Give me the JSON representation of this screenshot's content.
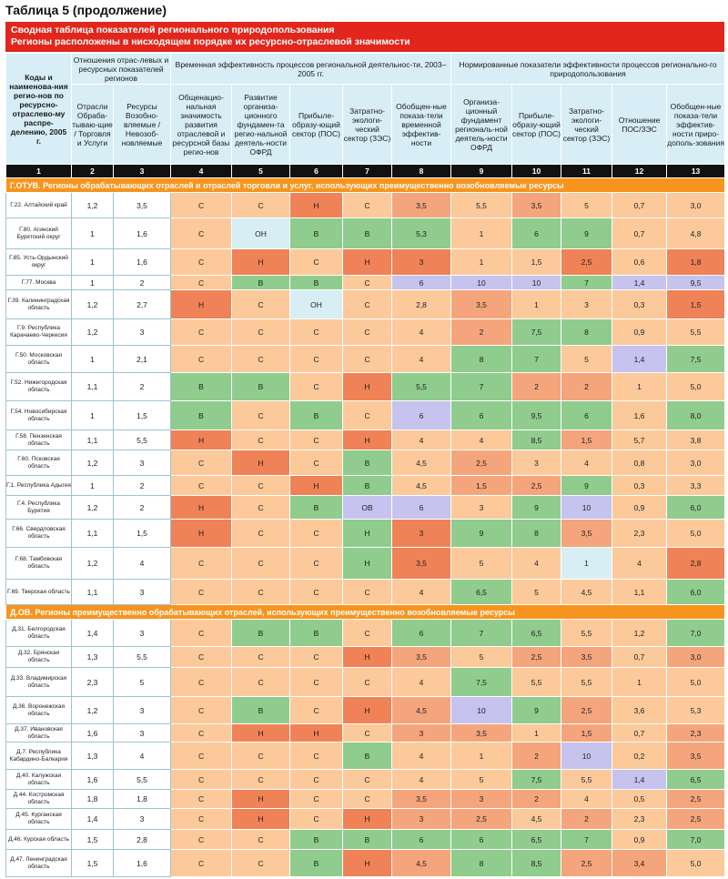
{
  "caption": "Таблица 5 (продолжение)",
  "banner": {
    "line1": "Сводная таблица показателей регионального природопользования",
    "line2": "Регионы расположены в нисходящем порядке их ресурсно-отраслевой значимости"
  },
  "header": {
    "col1": "Коды и наименова-ния регио-нов по ресурсно-отраслево-му распре-делению, 2005 г.",
    "group_ratios": "Отношения отрас-левых и ресурсных показателей регионов",
    "group_time": "Временная эффективность процессов региональной деятельнос-ти, 2003–2005 гг.",
    "group_norm": "Нормированные показатели эффективности процессов регионально-го природопользования",
    "col2": "Отрасли Обраба-тываю-щие / Торговля и Услуги",
    "col3": "Ресурсы Возобно-вляемые / Невозоб-новляемые",
    "col4": "Общенацио-нальная значимость развития отраслевой и ресурсной базы регио-нов",
    "col5": "Развитие организа-ционного фундамен-та регио-нальной деятель-ности ОФРД",
    "col6": "Прибыле-образу-ющий сектор (ПОС)",
    "col7": "Затратно-экологи-ческий сектор (ЗЭС)",
    "col8": "Обобщен-ные показа-тели временной эффектив-ности",
    "col9": "Организа-ционный фундамент региональ-ной деятель-ности ОФРД",
    "col10": "Прибыле-образу-ющий сектор (ПОС)",
    "col11": "Затратно-экологи-ческий сектор (ЗЭС)",
    "col12": "Отношение ПОС/ЗЭС",
    "col13": "Обобщен-ные показа-тели эффектив-ности приро-дополь-зования"
  },
  "col_numbers": [
    "1",
    "2",
    "3",
    "4",
    "5",
    "6",
    "7",
    "8",
    "9",
    "10",
    "11",
    "12",
    "13"
  ],
  "sections": [
    {
      "title": "Г.ОТУВ. Регионы обрабатывающих отраслей и отраслей торговли и услуг, использующих преимущественно возобновляемые ресурсы",
      "rows": [
        [
          "Г.22. Алтайский край",
          "1,2",
          "3,5",
          "С",
          "С",
          "Н",
          "С",
          "3,5",
          "5,5",
          "3,5",
          "5",
          "0,7",
          "3,0"
        ],
        [
          "Г.80. Агинский Бурятский округ",
          "1",
          "1,6",
          "С",
          "ОН",
          "В",
          "В",
          "5,3",
          "1",
          "6",
          "9",
          "0,7",
          "4,8"
        ],
        [
          "Г.85. Усть-Ордынский округ",
          "1",
          "1,6",
          "С",
          "Н",
          "С",
          "Н",
          "3",
          "1",
          "1,5",
          "2,5",
          "0,6",
          "1,8"
        ],
        [
          "Г.77. Москва",
          "1",
          "2",
          "С",
          "В",
          "В",
          "С",
          "6",
          "10",
          "10",
          "7",
          "1,4",
          "9,5"
        ],
        [
          "Г.39. Калининградская область",
          "1,2",
          "2,7",
          "Н",
          "С",
          "ОН",
          "С",
          "2,8",
          "3,5",
          "1",
          "3",
          "0,3",
          "1,5"
        ],
        [
          "Г.9. Республика Карачаево-Черкесия",
          "1,2",
          "3",
          "С",
          "С",
          "С",
          "С",
          "4",
          "2",
          "7,5",
          "8",
          "0,9",
          "5,5"
        ],
        [
          "Г.50. Московская область",
          "1",
          "2,1",
          "С",
          "С",
          "С",
          "С",
          "4",
          "8",
          "7",
          "5",
          "1,4",
          "7,5"
        ],
        [
          "Г.52. Нижегородская область",
          "1,1",
          "2",
          "В",
          "В",
          "С",
          "Н",
          "5,5",
          "7",
          "2",
          "2",
          "1",
          "5,0"
        ],
        [
          "Г.54. Новосибирская область",
          "1",
          "1,5",
          "В",
          "С",
          "В",
          "С",
          "6",
          "6",
          "9,5",
          "6",
          "1,6",
          "8,0"
        ],
        [
          "Г.58. Пензенская область",
          "1,1",
          "5,5",
          "Н",
          "С",
          "С",
          "Н",
          "4",
          "4",
          "8,5",
          "1,5",
          "5,7",
          "3,8"
        ],
        [
          "Г.60. Псковская область",
          "1,2",
          "3",
          "С",
          "Н",
          "С",
          "В",
          "4,5",
          "2,5",
          "3",
          "4",
          "0,8",
          "3,0"
        ],
        [
          "Г.1. Республика Адыгея",
          "1",
          "2",
          "С",
          "С",
          "Н",
          "В",
          "4,5",
          "1,5",
          "2,5",
          "9",
          "0,3",
          "3,3"
        ],
        [
          "Г.4. Республика Бурятия",
          "1,2",
          "2",
          "Н",
          "С",
          "В",
          "ОВ",
          "6",
          "3",
          "9",
          "10",
          "0,9",
          "6,0"
        ],
        [
          "Г.66. Свердловская область",
          "1,1",
          "1,5",
          "Н",
          "С",
          "С",
          "Н",
          "3",
          "9",
          "8",
          "3,5",
          "2,3",
          "5,0"
        ],
        [
          "Г.68. Тамбовская область",
          "1,2",
          "4",
          "С",
          "С",
          "С",
          "Н",
          "3,5",
          "5",
          "4",
          "1",
          "4",
          "2,8"
        ],
        [
          "Г.69. Тверская область",
          "1,1",
          "3",
          "С",
          "С",
          "С",
          "С",
          "4",
          "6,5",
          "5",
          "4,5",
          "1,1",
          "6,0"
        ]
      ],
      "colors": [
        [
          "L",
          "L",
          "R",
          "L",
          "O",
          "L",
          "O",
          "L",
          "L",
          "L"
        ],
        [
          "L",
          "W",
          "G",
          "G",
          "G",
          "L",
          "G",
          "G",
          "L",
          "L"
        ],
        [
          "L",
          "R",
          "L",
          "R",
          "R",
          "L",
          "L",
          "R",
          "L",
          "R"
        ],
        [
          "L",
          "G",
          "G",
          "L",
          "B",
          "B",
          "B",
          "G",
          "B",
          "B"
        ],
        [
          "R",
          "L",
          "W",
          "L",
          "L",
          "O",
          "L",
          "L",
          "L",
          "R"
        ],
        [
          "L",
          "L",
          "L",
          "L",
          "L",
          "O",
          "G",
          "G",
          "L",
          "L"
        ],
        [
          "L",
          "L",
          "L",
          "L",
          "L",
          "G",
          "G",
          "L",
          "B",
          "G"
        ],
        [
          "G",
          "G",
          "L",
          "R",
          "G",
          "G",
          "O",
          "O",
          "L",
          "L"
        ],
        [
          "G",
          "L",
          "G",
          "L",
          "B",
          "G",
          "G",
          "G",
          "L",
          "G"
        ],
        [
          "R",
          "L",
          "L",
          "R",
          "L",
          "L",
          "G",
          "O",
          "L",
          "L"
        ],
        [
          "L",
          "R",
          "L",
          "G",
          "L",
          "O",
          "L",
          "L",
          "L",
          "L"
        ],
        [
          "L",
          "L",
          "R",
          "G",
          "L",
          "O",
          "O",
          "G",
          "L",
          "L"
        ],
        [
          "R",
          "L",
          "G",
          "B",
          "B",
          "L",
          "G",
          "B",
          "L",
          "G"
        ],
        [
          "R",
          "L",
          "L",
          "G",
          "R",
          "G",
          "G",
          "O",
          "L",
          "L"
        ],
        [
          "L",
          "L",
          "L",
          "G",
          "R",
          "L",
          "L",
          "W",
          "L",
          "R"
        ],
        [
          "L",
          "L",
          "L",
          "L",
          "L",
          "G",
          "L",
          "L",
          "L",
          "G"
        ]
      ]
    },
    {
      "title": "Д.ОВ. Регионы преимущественно обрабатывающих отраслей, использующих преимущественно возобновляемые ресурсы",
      "rows": [
        [
          "Д.31. Белгородская область",
          "1,4",
          "3",
          "С",
          "В",
          "В",
          "С",
          "6",
          "7",
          "6,5",
          "5,5",
          "1,2",
          "7,0"
        ],
        [
          "Д.32. Брянская область",
          "1,3",
          "5,5",
          "С",
          "С",
          "С",
          "Н",
          "3,5",
          "5",
          "2,5",
          "3,5",
          "0,7",
          "3,0"
        ],
        [
          "Д.33. Владимирская область",
          "2,3",
          "5",
          "С",
          "С",
          "С",
          "С",
          "4",
          "7,5",
          "5,5",
          "5,5",
          "1",
          "5,0"
        ],
        [
          "Д.36. Воронежская область",
          "1,2",
          "3",
          "С",
          "В",
          "С",
          "Н",
          "4,5",
          "10",
          "9",
          "2,5",
          "3,6",
          "5,3"
        ],
        [
          "Д.37. Ивановская область",
          "1,6",
          "3",
          "С",
          "Н",
          "Н",
          "С",
          "3",
          "3,5",
          "1",
          "1,5",
          "0,7",
          "2,3"
        ],
        [
          "Д.7. Республика Кабардино-Балкария",
          "1,3",
          "4",
          "С",
          "С",
          "С",
          "В",
          "4",
          "1",
          "2",
          "10",
          "0,2",
          "3,5"
        ],
        [
          "Д.40. Калужская область",
          "1,6",
          "5,5",
          "С",
          "С",
          "С",
          "С",
          "4",
          "5",
          "7,5",
          "5,5",
          "1,4",
          "6,5"
        ],
        [
          "Д.44. Костромская область",
          "1,8",
          "1,8",
          "С",
          "Н",
          "С",
          "С",
          "3,5",
          "3",
          "2",
          "4",
          "0,5",
          "2,5"
        ],
        [
          "Д.45. Курганская область",
          "1,4",
          "3",
          "С",
          "Н",
          "С",
          "Н",
          "3",
          "2,5",
          "4,5",
          "2",
          "2,3",
          "2,5"
        ],
        [
          "Д.46. Курская область",
          "1,5",
          "2,8",
          "С",
          "С",
          "В",
          "В",
          "6",
          "6",
          "6,5",
          "7",
          "0,9",
          "7,0"
        ],
        [
          "Д.47. Ленинградская область",
          "1,5",
          "1,6",
          "С",
          "С",
          "В",
          "Н",
          "4,5",
          "8",
          "8,5",
          "2,5",
          "3,4",
          "5,0"
        ]
      ],
      "colors": [
        [
          "L",
          "G",
          "G",
          "L",
          "G",
          "G",
          "G",
          "L",
          "L",
          "G"
        ],
        [
          "L",
          "L",
          "L",
          "R",
          "O",
          "L",
          "O",
          "O",
          "L",
          "O"
        ],
        [
          "L",
          "L",
          "L",
          "L",
          "L",
          "G",
          "L",
          "L",
          "L",
          "L"
        ],
        [
          "L",
          "G",
          "L",
          "R",
          "O",
          "B",
          "G",
          "O",
          "L",
          "L"
        ],
        [
          "L",
          "R",
          "R",
          "L",
          "O",
          "O",
          "L",
          "O",
          "L",
          "O"
        ],
        [
          "L",
          "L",
          "L",
          "G",
          "L",
          "L",
          "O",
          "B",
          "L",
          "O"
        ],
        [
          "L",
          "L",
          "L",
          "L",
          "L",
          "L",
          "G",
          "L",
          "B",
          "G"
        ],
        [
          "L",
          "R",
          "L",
          "L",
          "O",
          "O",
          "O",
          "L",
          "L",
          "O"
        ],
        [
          "L",
          "R",
          "L",
          "R",
          "O",
          "O",
          "L",
          "O",
          "L",
          "O"
        ],
        [
          "L",
          "L",
          "G",
          "G",
          "G",
          "G",
          "G",
          "G",
          "L",
          "G"
        ],
        [
          "L",
          "L",
          "G",
          "R",
          "O",
          "G",
          "G",
          "O",
          "O",
          "L"
        ]
      ]
    }
  ]
}
